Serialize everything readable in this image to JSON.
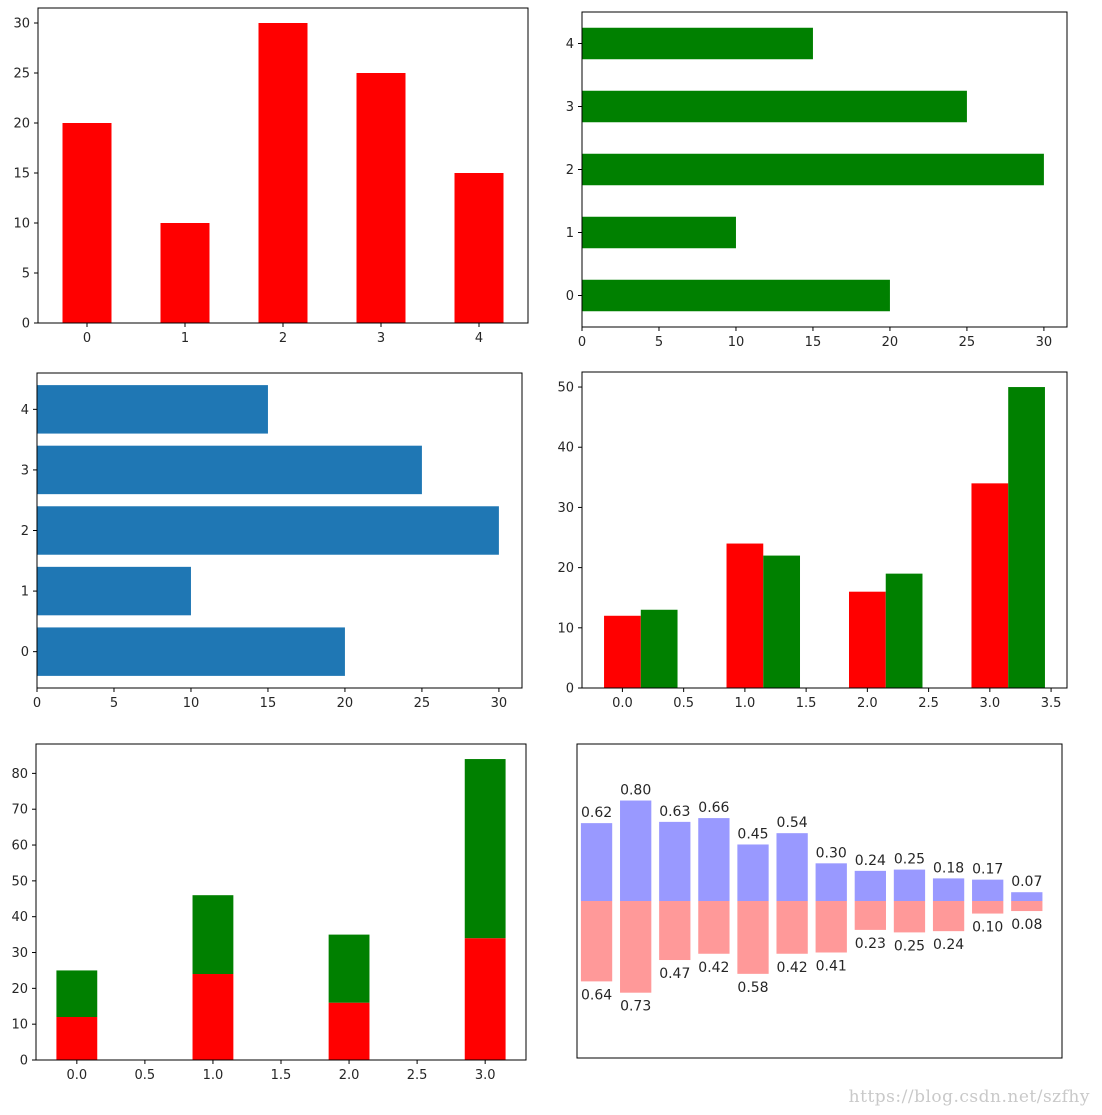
{
  "watermark": "https://blog.csdn.net/szfhy",
  "chart_data": [
    {
      "id": "c1",
      "type": "bar",
      "orientation": "vertical",
      "categories": [
        "0",
        "1",
        "2",
        "3",
        "4"
      ],
      "values": [
        20,
        10,
        30,
        25,
        15
      ],
      "color": "#ff0000",
      "xlim": [
        -0.5,
        4.5
      ],
      "ylim": [
        0,
        31.5
      ],
      "yticks": [
        0,
        5,
        10,
        15,
        20,
        25,
        30
      ],
      "ytick_labels": [
        "0",
        "5",
        "10",
        "15",
        "20",
        "25",
        "30"
      ]
    },
    {
      "id": "c2",
      "type": "bar",
      "orientation": "horizontal",
      "categories": [
        "0",
        "1",
        "2",
        "3",
        "4"
      ],
      "values": [
        20,
        10,
        30,
        25,
        15
      ],
      "color": "#008000",
      "xlim": [
        0,
        31.5
      ],
      "ylim": [
        -0.5,
        4.5
      ],
      "xticks": [
        0,
        5,
        10,
        15,
        20,
        25,
        30
      ],
      "xtick_labels": [
        "0",
        "5",
        "10",
        "15",
        "20",
        "25",
        "30"
      ]
    },
    {
      "id": "c3",
      "type": "bar",
      "orientation": "horizontal",
      "categories": [
        "0",
        "1",
        "2",
        "3",
        "4"
      ],
      "values": [
        20,
        10,
        30,
        25,
        15
      ],
      "color": "#1f77b4",
      "xlim": [
        0,
        31.5
      ],
      "ylim": [
        -0.6,
        4.6
      ],
      "xticks": [
        0,
        5,
        10,
        15,
        20,
        25,
        30
      ],
      "xtick_labels": [
        "0",
        "5",
        "10",
        "15",
        "20",
        "25",
        "30"
      ]
    },
    {
      "id": "c4",
      "type": "bar",
      "mode": "grouped",
      "x": [
        0,
        1,
        2,
        3
      ],
      "series": [
        {
          "values": [
            12,
            24,
            16,
            34
          ],
          "color": "#ff0000"
        },
        {
          "values": [
            13,
            22,
            19,
            50
          ],
          "color": "#008000"
        }
      ],
      "xlim": [
        -0.33,
        3.63
      ],
      "ylim": [
        0,
        52.5
      ],
      "xticks": [
        0,
        0.5,
        1,
        1.5,
        2,
        2.5,
        3,
        3.5
      ],
      "xtick_labels": [
        "0.0",
        "0.5",
        "1.0",
        "1.5",
        "2.0",
        "2.5",
        "3.0",
        "3.5"
      ],
      "yticks": [
        0,
        10,
        20,
        30,
        40,
        50
      ],
      "ytick_labels": [
        "0",
        "10",
        "20",
        "30",
        "40",
        "50"
      ]
    },
    {
      "id": "c5",
      "type": "bar",
      "mode": "stacked",
      "x": [
        0,
        1,
        2,
        3
      ],
      "series": [
        {
          "values": [
            12,
            24,
            16,
            34
          ],
          "color": "#ff0000"
        },
        {
          "values": [
            13,
            22,
            19,
            50
          ],
          "color": "#008000"
        }
      ],
      "xlim": [
        -0.3,
        3.3
      ],
      "ylim": [
        0,
        88.2
      ],
      "xticks": [
        0,
        0.5,
        1,
        1.5,
        2,
        2.5,
        3
      ],
      "xtick_labels": [
        "0.0",
        "0.5",
        "1.0",
        "1.5",
        "2.0",
        "2.5",
        "3.0"
      ],
      "yticks": [
        0,
        10,
        20,
        30,
        40,
        50,
        60,
        70,
        80
      ],
      "ytick_labels": [
        "0",
        "10",
        "20",
        "30",
        "40",
        "50",
        "60",
        "70",
        "80"
      ]
    },
    {
      "id": "c6",
      "type": "bar",
      "mode": "diverging",
      "axes_visible": false,
      "x": [
        0,
        1,
        2,
        3,
        4,
        5,
        6,
        7,
        8,
        9,
        10,
        11
      ],
      "series": [
        {
          "values": [
            0.62,
            0.8,
            0.63,
            0.66,
            0.45,
            0.54,
            0.3,
            0.24,
            0.25,
            0.18,
            0.17,
            0.07
          ],
          "labels": [
            "0.62",
            "0.80",
            "0.63",
            "0.66",
            "0.45",
            "0.54",
            "0.30",
            "0.24",
            "0.25",
            "0.18",
            "0.17",
            "0.07"
          ],
          "color": "#9999ff"
        },
        {
          "values": [
            -0.64,
            -0.73,
            -0.47,
            -0.42,
            -0.58,
            -0.42,
            -0.41,
            -0.23,
            -0.25,
            -0.24,
            -0.1,
            -0.08
          ],
          "labels": [
            "0.64",
            "0.73",
            "0.47",
            "0.42",
            "0.58",
            "0.42",
            "0.41",
            "0.23",
            "0.25",
            "0.24",
            "0.10",
            "0.08"
          ],
          "color": "#ff9999"
        }
      ],
      "xlim": [
        -0.5,
        11.9
      ],
      "ylim": [
        -1.25,
        1.25
      ]
    }
  ]
}
